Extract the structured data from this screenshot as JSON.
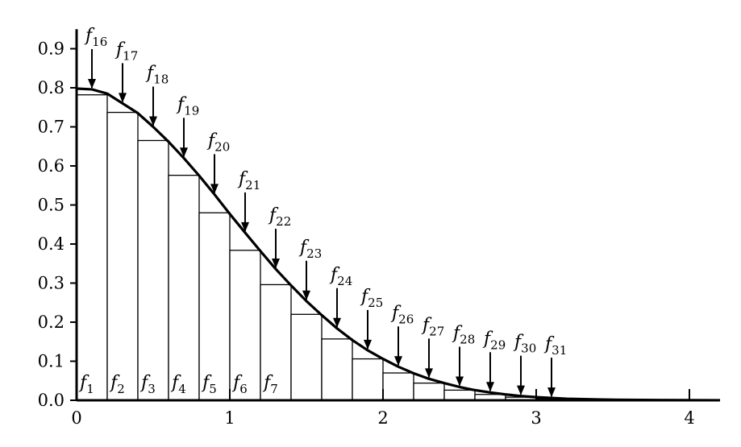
{
  "chart_data": {
    "type": "bar",
    "title": "",
    "xlabel": "",
    "ylabel": "",
    "xlim": [
      0,
      4.2
    ],
    "ylim": [
      0,
      0.95
    ],
    "grid": false,
    "x_ticks": [
      0,
      1,
      2,
      3,
      4
    ],
    "x_tick_labels": [
      "0",
      "1",
      "2",
      "3",
      "4"
    ],
    "y_ticks": [
      0.0,
      0.1,
      0.2,
      0.3,
      0.4,
      0.5,
      0.6,
      0.7,
      0.8,
      0.9
    ],
    "y_tick_labels": [
      "0.0",
      "0.1",
      "0.2",
      "0.3",
      "0.4",
      "0.5",
      "0.6",
      "0.7",
      "0.8",
      "0.9"
    ],
    "bin_width": 0.2,
    "bars": [
      {
        "label": "f1",
        "x0": 0.0,
        "value": 0.782
      },
      {
        "label": "f2",
        "x0": 0.2,
        "value": 0.737
      },
      {
        "label": "f3",
        "x0": 0.4,
        "value": 0.665
      },
      {
        "label": "f4",
        "x0": 0.6,
        "value": 0.576
      },
      {
        "label": "f5",
        "x0": 0.8,
        "value": 0.48
      },
      {
        "label": "f6",
        "x0": 1.0,
        "value": 0.384
      },
      {
        "label": "f7",
        "x0": 1.2,
        "value": 0.296
      },
      {
        "label": "",
        "x0": 1.4,
        "value": 0.22
      },
      {
        "label": "",
        "x0": 1.6,
        "value": 0.157
      },
      {
        "label": "",
        "x0": 1.8,
        "value": 0.106
      },
      {
        "label": "",
        "x0": 2.0,
        "value": 0.07
      },
      {
        "label": "",
        "x0": 2.2,
        "value": 0.044
      },
      {
        "label": "",
        "x0": 2.4,
        "value": 0.026
      },
      {
        "label": "",
        "x0": 2.6,
        "value": 0.015
      },
      {
        "label": "",
        "x0": 2.8,
        "value": 0.008
      },
      {
        "label": "",
        "x0": 3.0,
        "value": 0.004
      }
    ],
    "curve_points": [
      {
        "label": "f16",
        "x": 0.1,
        "y": 0.796
      },
      {
        "label": "f17",
        "x": 0.3,
        "y": 0.76
      },
      {
        "label": "f18",
        "x": 0.5,
        "y": 0.7
      },
      {
        "label": "f19",
        "x": 0.7,
        "y": 0.62
      },
      {
        "label": "f20",
        "x": 0.9,
        "y": 0.527
      },
      {
        "label": "f21",
        "x": 1.1,
        "y": 0.429
      },
      {
        "label": "f22",
        "x": 1.3,
        "y": 0.336
      },
      {
        "label": "f23",
        "x": 1.5,
        "y": 0.254
      },
      {
        "label": "f24",
        "x": 1.7,
        "y": 0.184
      },
      {
        "label": "f25",
        "x": 1.9,
        "y": 0.128
      },
      {
        "label": "f26",
        "x": 2.1,
        "y": 0.086
      },
      {
        "label": "f27",
        "x": 2.3,
        "y": 0.055
      },
      {
        "label": "f28",
        "x": 2.5,
        "y": 0.034
      },
      {
        "label": "f29",
        "x": 2.7,
        "y": 0.02
      },
      {
        "label": "f30",
        "x": 2.9,
        "y": 0.011
      },
      {
        "label": "f31",
        "x": 3.1,
        "y": 0.006
      }
    ],
    "curve": {
      "function": "0.8 * (1 - Phi(x))^2 shaped decreasing density",
      "x": [
        0.0,
        0.1,
        0.2,
        0.3,
        0.4,
        0.5,
        0.6,
        0.7,
        0.8,
        0.9,
        1.0,
        1.1,
        1.2,
        1.3,
        1.4,
        1.5,
        1.6,
        1.7,
        1.8,
        1.9,
        2.0,
        2.1,
        2.2,
        2.3,
        2.4,
        2.5,
        2.6,
        2.7,
        2.8,
        2.9,
        3.0,
        3.1,
        3.2,
        3.4,
        3.6,
        3.8,
        4.0,
        4.2
      ],
      "y": [
        0.798,
        0.796,
        0.785,
        0.76,
        0.735,
        0.7,
        0.662,
        0.62,
        0.575,
        0.527,
        0.477,
        0.429,
        0.382,
        0.336,
        0.294,
        0.254,
        0.218,
        0.184,
        0.154,
        0.128,
        0.106,
        0.086,
        0.069,
        0.055,
        0.044,
        0.034,
        0.026,
        0.02,
        0.015,
        0.011,
        0.008,
        0.006,
        0.004,
        0.002,
        0.001,
        0.0005,
        0.0002,
        0.0001
      ]
    }
  }
}
